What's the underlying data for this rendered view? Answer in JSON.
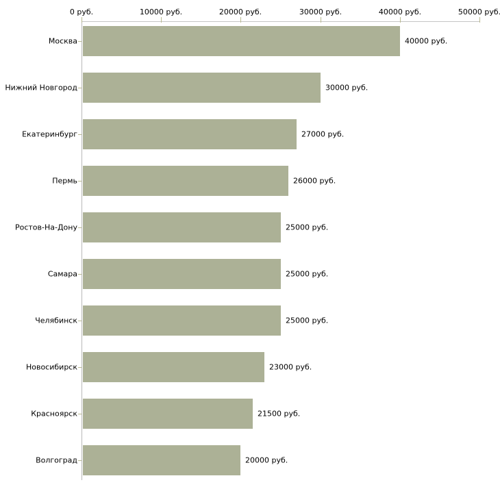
{
  "chart_data": {
    "type": "bar",
    "orientation": "horizontal",
    "title": "",
    "xlabel": "",
    "ylabel": "",
    "grid": false,
    "legend": false,
    "categories": [
      "Москва",
      "Нижний Новгород",
      "Екатеринбург",
      "Пермь",
      "Ростов-На-Дону",
      "Самара",
      "Челябинск",
      "Новосибирск",
      "Красноярск",
      "Волгоград"
    ],
    "values": [
      40000,
      30000,
      27000,
      26000,
      25000,
      25000,
      25000,
      23000,
      21500,
      20000
    ],
    "value_labels": [
      "40000 руб.",
      "30000 руб.",
      "27000 руб.",
      "26000 руб.",
      "25000 руб.",
      "25000 руб.",
      "25000 руб.",
      "23000 руб.",
      "21500 руб.",
      "20000 руб."
    ],
    "x_axis": {
      "position": "top",
      "min": 0,
      "max": 50000,
      "ticks": [
        0,
        10000,
        20000,
        30000,
        40000,
        50000
      ],
      "tick_labels": [
        "0 руб.",
        "10000 руб.",
        "20000 руб.",
        "30000 руб.",
        "40000 руб.",
        "50000 руб."
      ]
    }
  },
  "colors": {
    "bar": "#acb196",
    "axis_line": "#c5c5c5",
    "tick_mark": "#b9b98f",
    "y_axis_line": "#b9b9b9",
    "text": "#000000",
    "background": "#ffffff"
  }
}
